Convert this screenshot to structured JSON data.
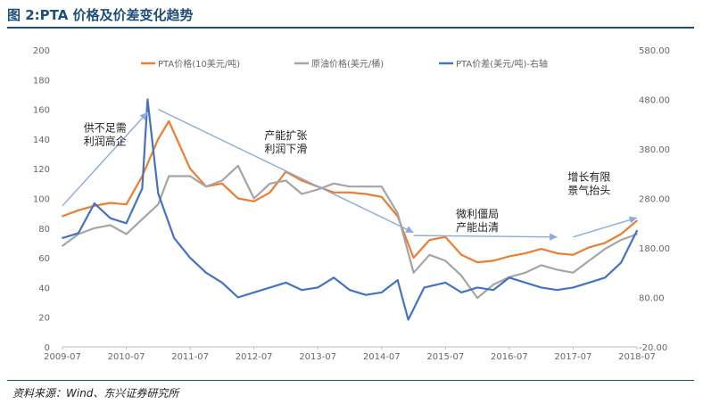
{
  "figure": {
    "title": "图 2:PTA 价格及价差变化趋势",
    "source": "资料来源：Wind、东兴证券研究所"
  },
  "chart_data": {
    "type": "line",
    "x_ticks": [
      "2009-07",
      "2010-07",
      "2011-07",
      "2012-07",
      "2013-07",
      "2014-07",
      "2015-07",
      "2016-07",
      "2017-07",
      "2018-07"
    ],
    "y_left": {
      "ylim": [
        0,
        200
      ],
      "ticks": [
        "0",
        "20",
        "40",
        "60",
        "80",
        "100",
        "120",
        "140",
        "160",
        "180",
        "200"
      ]
    },
    "y_right": {
      "ylim": [
        -20,
        580
      ],
      "ticks": [
        "-20.00",
        "80.00",
        "180.00",
        "280.00",
        "380.00",
        "480.00",
        "580.00"
      ]
    },
    "legend_position": "top",
    "series": [
      {
        "name": "PTA价格(10美元/吨)",
        "axis": "left",
        "color": "#ed7d31",
        "x": [
          "2009-07",
          "2009-10",
          "2010-01",
          "2010-04",
          "2010-07",
          "2010-10",
          "2011-01",
          "2011-03",
          "2011-07",
          "2011-10",
          "2012-01",
          "2012-04",
          "2012-07",
          "2012-10",
          "2013-01",
          "2013-04",
          "2013-07",
          "2013-10",
          "2014-01",
          "2014-04",
          "2014-07",
          "2014-10",
          "2015-01",
          "2015-04",
          "2015-07",
          "2015-10",
          "2016-01",
          "2016-04",
          "2016-07",
          "2016-10",
          "2017-01",
          "2017-04",
          "2017-07",
          "2017-10",
          "2018-01",
          "2018-04",
          "2018-07"
        ],
        "values": [
          88,
          92,
          95,
          97,
          96,
          115,
          140,
          152,
          120,
          108,
          110,
          100,
          98,
          104,
          118,
          112,
          108,
          104,
          104,
          103,
          101,
          88,
          60,
          72,
          74,
          62,
          57,
          58,
          61,
          63,
          66,
          63,
          62,
          67,
          70,
          76,
          85
        ]
      },
      {
        "name": "原油价格(美元/桶)",
        "axis": "left",
        "color": "#a5a5a5",
        "x": [
          "2009-07",
          "2009-10",
          "2010-01",
          "2010-04",
          "2010-07",
          "2010-10",
          "2011-01",
          "2011-03",
          "2011-07",
          "2011-10",
          "2012-01",
          "2012-04",
          "2012-07",
          "2012-10",
          "2013-01",
          "2013-04",
          "2013-07",
          "2013-10",
          "2014-01",
          "2014-04",
          "2014-07",
          "2014-10",
          "2015-01",
          "2015-04",
          "2015-07",
          "2015-10",
          "2016-01",
          "2016-04",
          "2016-07",
          "2016-10",
          "2017-01",
          "2017-04",
          "2017-07",
          "2017-10",
          "2018-01",
          "2018-04",
          "2018-07"
        ],
        "values": [
          68,
          76,
          80,
          82,
          76,
          86,
          96,
          115,
          115,
          108,
          112,
          122,
          100,
          110,
          112,
          103,
          106,
          110,
          108,
          108,
          108,
          90,
          50,
          62,
          58,
          48,
          33,
          42,
          47,
          50,
          55,
          52,
          50,
          58,
          66,
          72,
          76
        ]
      },
      {
        "name": "PTA价差(美元/吨)-右轴",
        "axis": "right",
        "color": "#4472c4",
        "x": [
          "2009-07",
          "2009-10",
          "2010-01",
          "2010-04",
          "2010-07",
          "2010-10",
          "2010-11",
          "2011-01",
          "2011-04",
          "2011-07",
          "2011-10",
          "2012-01",
          "2012-04",
          "2012-07",
          "2012-10",
          "2013-01",
          "2013-04",
          "2013-07",
          "2013-10",
          "2014-01",
          "2014-04",
          "2014-07",
          "2014-10",
          "2014-12",
          "2015-03",
          "2015-07",
          "2015-10",
          "2016-01",
          "2016-04",
          "2016-07",
          "2016-10",
          "2017-01",
          "2017-04",
          "2017-07",
          "2017-10",
          "2018-01",
          "2018-04",
          "2018-07"
        ],
        "values": [
          200,
          210,
          270,
          240,
          230,
          300,
          480,
          290,
          200,
          160,
          130,
          110,
          80,
          90,
          100,
          110,
          95,
          100,
          120,
          95,
          85,
          90,
          115,
          35,
          100,
          110,
          90,
          100,
          95,
          120,
          110,
          100,
          95,
          100,
          110,
          120,
          150,
          215
        ]
      }
    ],
    "annotations": [
      {
        "text": "供不足需",
        "x": "2010-03",
        "y": 145,
        "lines": [
          "供不足需",
          "利润高企"
        ]
      },
      {
        "text": "产能扩张",
        "x": "2013-01",
        "y": 140,
        "lines": [
          "产能扩张",
          "利润下滑"
        ]
      },
      {
        "text": "微利僵局",
        "x": "2016-01",
        "y": 87,
        "lines": [
          "微利僵局",
          "产能出清"
        ]
      },
      {
        "text": "增长有限",
        "x": "2017-10",
        "y": 112,
        "lines": [
          "增长有限",
          "景气抬头"
        ]
      }
    ],
    "trend_arrows": [
      {
        "from": [
          "2009-07",
          95
        ],
        "to": [
          "2010-11",
          158
        ]
      },
      {
        "from": [
          "2011-01",
          160
        ],
        "to": [
          "2015-01",
          77
        ]
      },
      {
        "from": [
          "2015-01",
          75
        ],
        "to": [
          "2017-04",
          74
        ]
      },
      {
        "from": [
          "2017-07",
          74
        ],
        "to": [
          "2018-07",
          87
        ]
      }
    ]
  }
}
